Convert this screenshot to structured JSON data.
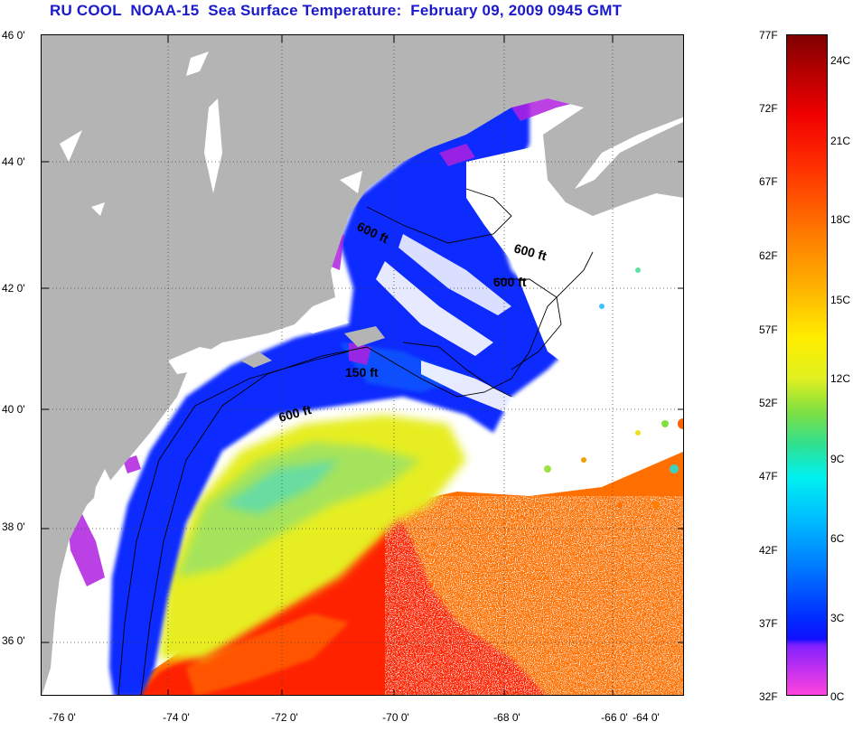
{
  "title": "RU COOL  NOAA-15  Sea Surface Temperature:  February 09, 2009 0945 GMT",
  "map": {
    "lat_labels": [
      "46 0'",
      "44 0'",
      "42 0'",
      "40 0'",
      "38 0'",
      "36 0'"
    ],
    "lon_labels": [
      "-76 0'",
      "-74 0'",
      "-72 0'",
      "-70 0'",
      "-68 0'",
      "-66 0'",
      "-64 0'"
    ],
    "contour_labels": [
      "600 ft",
      "600 ft",
      "600 ft",
      "150 ft",
      "600 ft"
    ],
    "colors": {
      "land": "#b4b4b4",
      "cloud": "#ffffff",
      "grid": "#444444"
    }
  },
  "colorbar": {
    "fahrenheit": [
      "77F",
      "72F",
      "67F",
      "62F",
      "57F",
      "52F",
      "47F",
      "42F",
      "37F",
      "32F"
    ],
    "celsius": [
      "24C",
      "21C",
      "18C",
      "15C",
      "12C",
      "9C",
      "6C",
      "3C",
      "0C"
    ]
  }
}
